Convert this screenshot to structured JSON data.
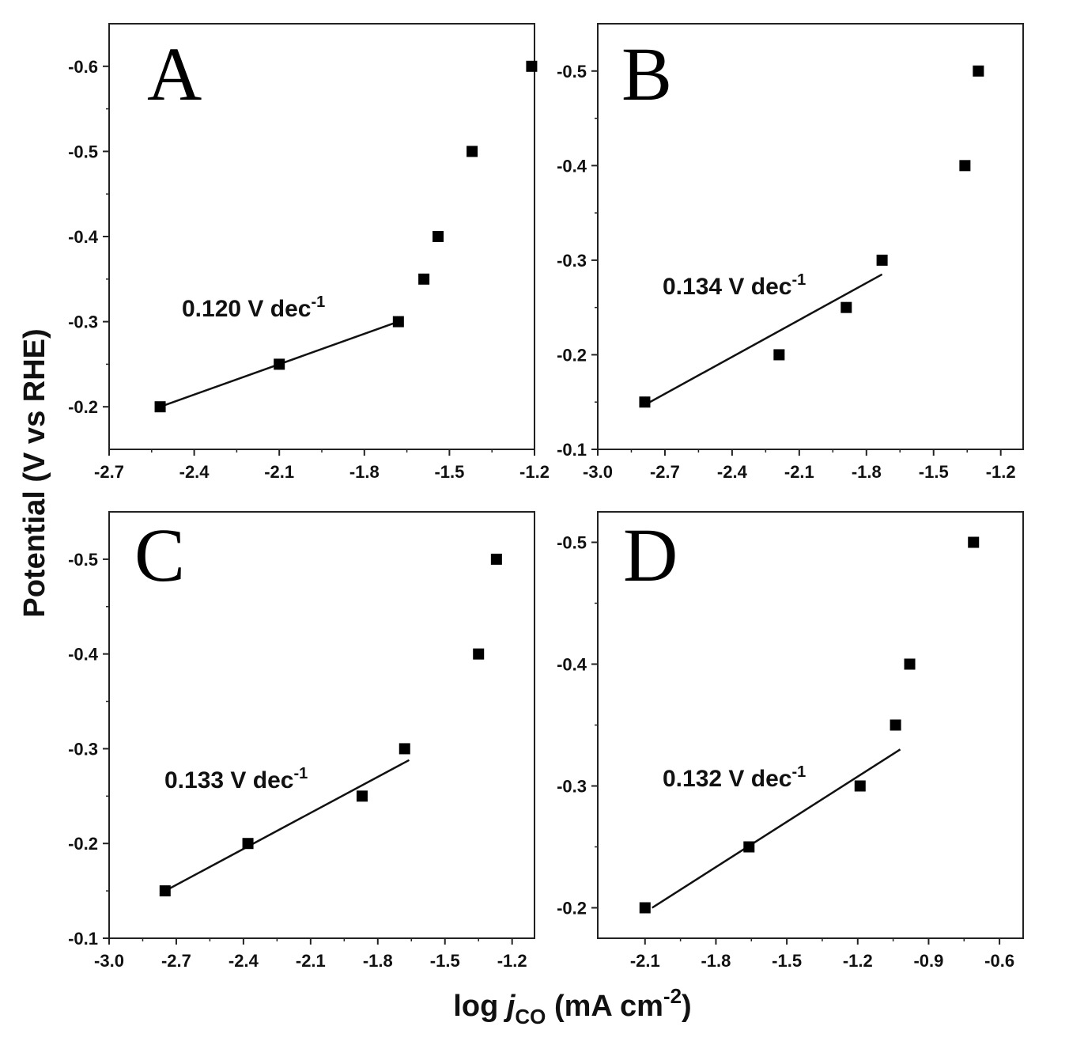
{
  "figure": {
    "ylabel": "Potential (V vs RHE)",
    "xlabel": {
      "prefix": "log ",
      "italic": "j",
      "subscript": "CO",
      "unit": " (mA cm",
      "superscript": "-2",
      "close": ")"
    }
  },
  "chart_data": [
    {
      "type": "scatter",
      "panel": "A",
      "xlim": [
        -2.7,
        -1.2
      ],
      "ylim": [
        -0.15,
        -0.65
      ],
      "xticks": [
        "-2.7",
        "-2.4",
        "-2.1",
        "-1.8",
        "-1.5",
        "-1.2"
      ],
      "yticks": [
        "-0.2",
        "-0.3",
        "-0.4",
        "-0.5",
        "-0.6"
      ],
      "points": [
        {
          "x": -2.52,
          "y": -0.2
        },
        {
          "x": -2.1,
          "y": -0.25
        },
        {
          "x": -1.68,
          "y": -0.3
        },
        {
          "x": -1.59,
          "y": -0.35
        },
        {
          "x": -1.54,
          "y": -0.4
        },
        {
          "x": -1.42,
          "y": -0.5
        },
        {
          "x": -1.21,
          "y": -0.6
        }
      ],
      "fit": {
        "x": [
          -2.52,
          -1.68
        ],
        "y": [
          -0.2,
          -0.3
        ],
        "label": "0.120 V dec",
        "label_sup": "-1"
      }
    },
    {
      "type": "scatter",
      "panel": "B",
      "xlim": [
        -3.0,
        -1.1
      ],
      "ylim": [
        -0.1,
        -0.55
      ],
      "xticks": [
        "-3.0",
        "-2.7",
        "-2.4",
        "-2.1",
        "-1.8",
        "-1.5",
        "-1.2"
      ],
      "yticks": [
        "-0.1",
        "-0.2",
        "-0.3",
        "-0.4",
        "-0.5"
      ],
      "points": [
        {
          "x": -2.79,
          "y": -0.15
        },
        {
          "x": -2.19,
          "y": -0.2
        },
        {
          "x": -1.89,
          "y": -0.25
        },
        {
          "x": -1.73,
          "y": -0.3
        },
        {
          "x": -1.36,
          "y": -0.4
        },
        {
          "x": -1.3,
          "y": -0.5
        }
      ],
      "fit": {
        "x": [
          -2.79,
          -1.73
        ],
        "y": [
          -0.147,
          -0.285
        ],
        "label": "0.134 V dec",
        "label_sup": "-1"
      }
    },
    {
      "type": "scatter",
      "panel": "C",
      "xlim": [
        -3.0,
        -1.1
      ],
      "ylim": [
        -0.1,
        -0.55
      ],
      "xticks": [
        "-3.0",
        "-2.7",
        "-2.4",
        "-2.1",
        "-1.8",
        "-1.5",
        "-1.2"
      ],
      "yticks": [
        "-0.1",
        "-0.2",
        "-0.3",
        "-0.4",
        "-0.5"
      ],
      "points": [
        {
          "x": -2.75,
          "y": -0.15
        },
        {
          "x": -2.38,
          "y": -0.2
        },
        {
          "x": -1.87,
          "y": -0.25
        },
        {
          "x": -1.68,
          "y": -0.3
        },
        {
          "x": -1.35,
          "y": -0.4
        },
        {
          "x": -1.27,
          "y": -0.5
        }
      ],
      "fit": {
        "x": [
          -2.75,
          -1.66
        ],
        "y": [
          -0.15,
          -0.288
        ],
        "label": "0.133 V dec",
        "label_sup": "-1"
      }
    },
    {
      "type": "scatter",
      "panel": "D",
      "xlim": [
        -2.3,
        -0.5
      ],
      "ylim": [
        -0.175,
        -0.525
      ],
      "xticks": [
        "-2.1",
        "-1.8",
        "-1.5",
        "-1.2",
        "-0.9",
        "-0.6"
      ],
      "yticks": [
        "-0.2",
        "-0.3",
        "-0.4",
        "-0.5"
      ],
      "points": [
        {
          "x": -2.1,
          "y": -0.2
        },
        {
          "x": -1.66,
          "y": -0.25
        },
        {
          "x": -1.19,
          "y": -0.3
        },
        {
          "x": -1.04,
          "y": -0.35
        },
        {
          "x": -0.98,
          "y": -0.4
        },
        {
          "x": -0.71,
          "y": -0.5
        }
      ],
      "fit": {
        "x": [
          -2.07,
          -1.02
        ],
        "y": [
          -0.2,
          -0.33
        ],
        "label": "0.132 V dec",
        "label_sup": "-1"
      }
    }
  ]
}
